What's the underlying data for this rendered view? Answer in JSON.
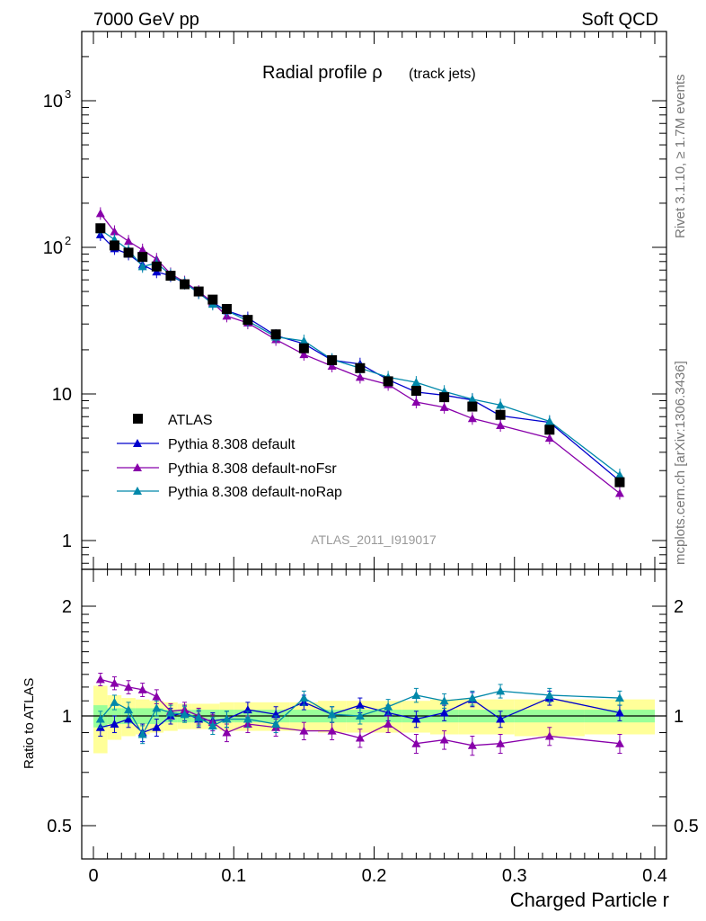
{
  "header": {
    "left": "7000 GeV pp",
    "right": "Soft QCD"
  },
  "side": {
    "rivet": "Rivet 3.1.10, ≥ 1.7M events",
    "mcplots": "mcplots.cern.ch [arXiv:1306.3436]"
  },
  "chart_data": {
    "type": "scatter",
    "title_main": "Radial profile ρ",
    "title_sub": "(track jets)",
    "analysis_label": "ATLAS_2011_I919017",
    "xlabel": "Charged Particle r",
    "ylabel_ratio": "Ratio to ATLAS",
    "xlim": [
      0,
      0.4
    ],
    "main_ylim": [
      0.6,
      3000
    ],
    "main_yscale": "log",
    "ratio_ylim": [
      0.4,
      2.2
    ],
    "main_yticks": [
      {
        "v": 1,
        "label": "1"
      },
      {
        "v": 10,
        "label": "10"
      },
      {
        "v": 100,
        "label": "10",
        "exp": "2"
      },
      {
        "v": 1000,
        "label": "10",
        "exp": "3"
      }
    ],
    "ratio_yticks": [
      {
        "v": 0.5,
        "label": "0.5"
      },
      {
        "v": 1,
        "label": "1"
      },
      {
        "v": 2,
        "label": "2"
      }
    ],
    "xticks": [
      {
        "v": 0,
        "label": "0"
      },
      {
        "v": 0.1,
        "label": "0.1"
      },
      {
        "v": 0.2,
        "label": "0.2"
      },
      {
        "v": 0.3,
        "label": "0.3"
      },
      {
        "v": 0.4,
        "label": "0.4"
      }
    ],
    "legend": {
      "position": "lower-left",
      "entries": [
        "ATLAS",
        "Pythia 8.308 default",
        "Pythia 8.308 default-noFsr",
        "Pythia 8.308 default-noRap"
      ]
    },
    "x": [
      0.005,
      0.015,
      0.025,
      0.035,
      0.045,
      0.055,
      0.065,
      0.075,
      0.085,
      0.095,
      0.11,
      0.13,
      0.15,
      0.17,
      0.19,
      0.21,
      0.23,
      0.25,
      0.27,
      0.29,
      0.325,
      0.375
    ],
    "data": {
      "name": "ATLAS",
      "color": "#000000",
      "values": [
        135,
        103,
        92,
        86,
        74,
        64,
        56,
        50,
        44,
        38,
        32,
        25.5,
        20.5,
        17,
        15,
        12.2,
        10.5,
        9.5,
        8.2,
        7.2,
        5.7,
        2.5
      ]
    },
    "bands": [
      {
        "x": [
          0.0,
          0.01
        ],
        "stat": [
          0.93,
          1.07
        ],
        "syst": [
          0.79,
          1.21
        ]
      },
      {
        "x": [
          0.01,
          0.02
        ],
        "stat": [
          0.95,
          1.05
        ],
        "syst": [
          0.86,
          1.14
        ]
      },
      {
        "x": [
          0.02,
          0.03
        ],
        "stat": [
          0.95,
          1.05
        ],
        "syst": [
          0.88,
          1.12
        ]
      },
      {
        "x": [
          0.03,
          0.04
        ],
        "stat": [
          0.95,
          1.05
        ],
        "syst": [
          0.89,
          1.11
        ]
      },
      {
        "x": [
          0.04,
          0.05
        ],
        "stat": [
          0.95,
          1.05
        ],
        "syst": [
          0.9,
          1.1
        ]
      },
      {
        "x": [
          0.05,
          0.06
        ],
        "stat": [
          0.96,
          1.04
        ],
        "syst": [
          0.91,
          1.09
        ]
      },
      {
        "x": [
          0.06,
          0.07
        ],
        "stat": [
          0.96,
          1.04
        ],
        "syst": [
          0.92,
          1.08
        ]
      },
      {
        "x": [
          0.07,
          0.08
        ],
        "stat": [
          0.96,
          1.04
        ],
        "syst": [
          0.92,
          1.08
        ]
      },
      {
        "x": [
          0.08,
          0.09
        ],
        "stat": [
          0.96,
          1.04
        ],
        "syst": [
          0.92,
          1.08
        ]
      },
      {
        "x": [
          0.09,
          0.1
        ],
        "stat": [
          0.96,
          1.04
        ],
        "syst": [
          0.91,
          1.09
        ]
      },
      {
        "x": [
          0.1,
          0.12
        ],
        "stat": [
          0.96,
          1.04
        ],
        "syst": [
          0.91,
          1.09
        ]
      },
      {
        "x": [
          0.12,
          0.14
        ],
        "stat": [
          0.96,
          1.04
        ],
        "syst": [
          0.91,
          1.09
        ]
      },
      {
        "x": [
          0.14,
          0.16
        ],
        "stat": [
          0.96,
          1.04
        ],
        "syst": [
          0.91,
          1.09
        ]
      },
      {
        "x": [
          0.16,
          0.18
        ],
        "stat": [
          0.96,
          1.04
        ],
        "syst": [
          0.9,
          1.1
        ]
      },
      {
        "x": [
          0.18,
          0.2
        ],
        "stat": [
          0.96,
          1.04
        ],
        "syst": [
          0.9,
          1.1
        ]
      },
      {
        "x": [
          0.2,
          0.22
        ],
        "stat": [
          0.96,
          1.04
        ],
        "syst": [
          0.9,
          1.1
        ]
      },
      {
        "x": [
          0.22,
          0.24
        ],
        "stat": [
          0.96,
          1.04
        ],
        "syst": [
          0.9,
          1.1
        ]
      },
      {
        "x": [
          0.24,
          0.26
        ],
        "stat": [
          0.96,
          1.04
        ],
        "syst": [
          0.89,
          1.11
        ]
      },
      {
        "x": [
          0.26,
          0.28
        ],
        "stat": [
          0.96,
          1.04
        ],
        "syst": [
          0.89,
          1.11
        ]
      },
      {
        "x": [
          0.28,
          0.3
        ],
        "stat": [
          0.96,
          1.04
        ],
        "syst": [
          0.89,
          1.11
        ]
      },
      {
        "x": [
          0.3,
          0.35
        ],
        "stat": [
          0.96,
          1.04
        ],
        "syst": [
          0.88,
          1.11
        ]
      },
      {
        "x": [
          0.35,
          0.4
        ],
        "stat": [
          0.96,
          1.04
        ],
        "syst": [
          0.89,
          1.11
        ]
      }
    ],
    "series": [
      {
        "name": "Pythia 8.308 default",
        "color": "#0000cc",
        "values": [
          122,
          98,
          90,
          76,
          68,
          64,
          57,
          49,
          42,
          37,
          33,
          25,
          22,
          17,
          16,
          12.5,
          10.3,
          9.8,
          9.1,
          7.1,
          6.4,
          2.55
        ],
        "ratio": [
          0.93,
          0.95,
          0.98,
          0.9,
          0.93,
          1.0,
          1.02,
          0.98,
          0.97,
          0.98,
          1.04,
          1.01,
          1.09,
          1.01,
          1.07,
          1.02,
          0.98,
          1.02,
          1.11,
          0.98,
          1.12,
          1.02
        ],
        "ratio_err": 0.05
      },
      {
        "name": "Pythia 8.308 default-noFsr",
        "color": "#8800aa",
        "values": [
          170,
          128,
          110,
          96,
          83,
          66,
          58,
          50,
          42,
          34,
          30.5,
          23.5,
          18.6,
          15.5,
          13,
          11.6,
          8.8,
          8.1,
          6.8,
          6.1,
          5.0,
          2.1
        ],
        "ratio": [
          1.26,
          1.23,
          1.2,
          1.18,
          1.13,
          1.03,
          1.04,
          1.0,
          0.96,
          0.9,
          0.95,
          0.93,
          0.91,
          0.91,
          0.87,
          0.95,
          0.84,
          0.86,
          0.83,
          0.84,
          0.88,
          0.84
        ],
        "ratio_err": 0.05
      },
      {
        "name": "Pythia 8.308 default-noRap",
        "color": "#0088aa",
        "values": [
          132,
          113,
          96,
          74,
          78,
          65,
          57,
          49,
          41,
          37,
          31.5,
          24.5,
          23,
          17.2,
          15,
          13,
          12,
          10.4,
          9.2,
          8.4,
          6.5,
          2.8
        ],
        "ratio": [
          0.98,
          1.09,
          1.04,
          0.89,
          1.05,
          1.02,
          1.01,
          0.99,
          0.94,
          0.98,
          0.98,
          0.95,
          1.12,
          1.01,
          1.0,
          1.06,
          1.14,
          1.1,
          1.12,
          1.17,
          1.14,
          1.12
        ],
        "ratio_err": 0.05
      }
    ]
  }
}
